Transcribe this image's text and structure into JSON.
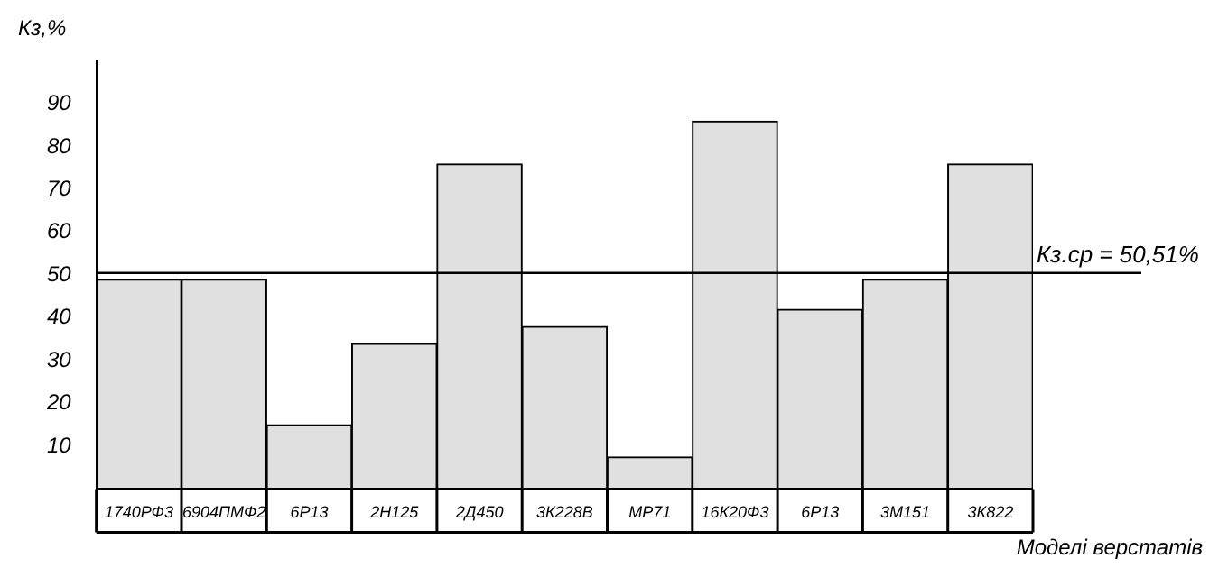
{
  "chart_data": {
    "type": "bar",
    "xlabel": "Моделі верстатів",
    "ylabel": "Кз,%",
    "categories": [
      "1740РФ3",
      "6904ПМФ2",
      "6Р13",
      "2Н125",
      "2Д450",
      "3К228В",
      "МР71",
      "16К20Ф3",
      "6Р13",
      "3М151",
      "3К822"
    ],
    "values": [
      49,
      49,
      15,
      34,
      76,
      38,
      7.5,
      86,
      42,
      49,
      76
    ],
    "color": "#e0e0e0",
    "ylim": [
      0,
      100
    ],
    "yticks": [
      10,
      20,
      30,
      40,
      50,
      60,
      70,
      80,
      90
    ],
    "grid": false,
    "legend": false,
    "ref_lines": [
      {
        "axis": "y",
        "value": 50.51,
        "label": "Кз.ср = 50,51%",
        "color": "#000000"
      }
    ]
  }
}
